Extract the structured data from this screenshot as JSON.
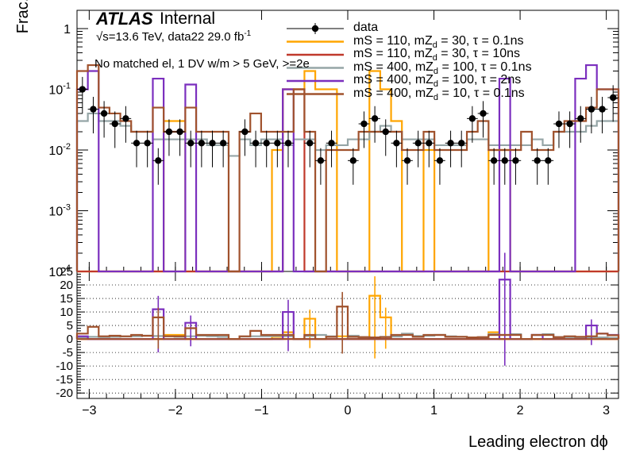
{
  "header": {
    "atlas": "ATLAS",
    "internal": "Internal",
    "energy_line": "√s=13.6 TeV, data22 29.0 fb",
    "lumi_sup": "-1",
    "selection": "No matched el, 1 DV w/m > 5 GeV, >=2e"
  },
  "axes": {
    "ylabel_top": "Frac. Events",
    "xlabel": "Leading electron dϕ"
  },
  "legend": [
    {
      "label": "data",
      "color": "#000000",
      "marker": "dot"
    },
    {
      "label": "mS = 110, mZ_d = 30, τ = 0.1ns",
      "color": "#ffa500",
      "marker": "line"
    },
    {
      "label": "mS = 110, mZ_d = 30, τ = 10ns",
      "color": "#c0392b",
      "marker": "line"
    },
    {
      "label": "mS = 400, mZ_d = 100, τ = 0.1ns",
      "color": "#95a5a6",
      "marker": "line"
    },
    {
      "label": "mS = 400, mZ_d = 100, τ = 2ns",
      "color": "#7b2fbe",
      "marker": "line"
    },
    {
      "label": "mS = 400, mZ_d = 10, τ = 0.1ns",
      "color": "#a0522d",
      "marker": "line"
    }
  ],
  "chart_data": [
    {
      "type": "line",
      "panel": "top",
      "scale": "log",
      "xlim": [
        -3.14159,
        3.14159
      ],
      "ylim": [
        0.0001,
        2
      ],
      "ylabel": "Frac. Events",
      "yticks": [
        "10^-4",
        "10^-3",
        "10^-2",
        "10^-1",
        "1"
      ],
      "bins": 50,
      "series": [
        {
          "name": "data",
          "color": "#000000",
          "style": "points",
          "values": [
            0.1,
            0.047,
            0.04,
            0.027,
            0.033,
            0.013,
            0.013,
            0.0067,
            0.02,
            0.02,
            0.013,
            0.013,
            0.013,
            0.013,
            0,
            0.02,
            0.013,
            0.013,
            0.013,
            0.013,
            0,
            0.013,
            0.0067,
            0.013,
            0,
            0.0067,
            0.027,
            0.033,
            0.02,
            0.013,
            0.0067,
            0.013,
            0.013,
            0.0067,
            0.013,
            0.013,
            0.033,
            0.04,
            0.0067,
            0.0067,
            0.0067,
            0,
            0.0067,
            0.0067,
            0.027,
            0.027,
            0.033,
            0.047,
            0.047,
            0.073
          ]
        },
        {
          "name": "mS = 110, mZ_d = 30, τ = 0.1ns",
          "color": "#ffa500",
          "style": "step",
          "values": [
            0,
            0,
            0,
            0,
            0,
            0,
            0,
            0,
            0.03,
            0.03,
            0,
            0,
            0,
            0,
            0,
            0,
            0,
            0,
            0.01,
            0.1,
            0.1,
            0.2,
            0.1,
            0.1,
            0,
            0,
            0,
            0.2,
            0.1,
            0.03,
            0,
            0,
            0.01,
            0,
            0,
            0,
            0,
            0,
            0.01,
            0.01,
            0,
            0,
            0,
            0,
            0,
            0,
            0,
            0,
            0,
            0
          ]
        },
        {
          "name": "mS = 110, mZ_d = 30, τ = 10ns",
          "color": "#c0392b",
          "style": "step",
          "values": [
            0,
            0,
            0,
            0,
            0,
            0,
            0,
            0,
            0,
            0,
            0,
            0,
            0,
            0,
            0,
            0,
            0,
            0,
            0,
            0.1,
            0.1,
            0,
            0,
            0,
            0,
            0,
            0,
            0,
            0,
            0,
            0,
            0,
            0,
            0,
            0,
            0,
            0,
            0,
            0,
            0,
            0,
            0,
            0,
            0,
            0,
            0,
            0,
            0,
            0,
            0
          ]
        },
        {
          "name": "mS = 400, mZ_d = 100, τ = 0.1ns",
          "color": "#95a5a6",
          "style": "step",
          "values": [
            0.03,
            0.04,
            0.03,
            0.03,
            0.025,
            0.02,
            0.02,
            0.015,
            0.015,
            0.015,
            0.015,
            0.015,
            0.012,
            0.012,
            0.008,
            0.015,
            0.012,
            0.015,
            0.015,
            0.012,
            0.015,
            0.015,
            0.01,
            0.012,
            0.012,
            0.015,
            0.015,
            0.02,
            0.025,
            0.02,
            0.015,
            0.015,
            0.015,
            0.012,
            0.012,
            0.012,
            0.015,
            0.015,
            0.012,
            0.012,
            0.012,
            0.012,
            0.015,
            0.012,
            0.02,
            0.02,
            0.02,
            0.025,
            0.03,
            0.03
          ]
        },
        {
          "name": "mS = 400, mZ_d = 100, τ = 2ns",
          "color": "#7b2fbe",
          "style": "step",
          "values": [
            0.1,
            0.2,
            0,
            0,
            0,
            0,
            0,
            0.15,
            0,
            0,
            0.12,
            0,
            0,
            0,
            0,
            0,
            0,
            0,
            0,
            0.1,
            0,
            0,
            0,
            0,
            0,
            0,
            0,
            0,
            0,
            0,
            0,
            0,
            0,
            0,
            0,
            0,
            0,
            0,
            0,
            0.15,
            0,
            0,
            0,
            0,
            0,
            0,
            0.15,
            0.25,
            0.1,
            0.1
          ]
        },
        {
          "name": "mS = 400, mZ_d = 10, τ = 0.1ns",
          "color": "#a0522d",
          "style": "step",
          "values": [
            0.2,
            0.25,
            0.05,
            0.04,
            0.03,
            0.02,
            0.02,
            0.05,
            0.02,
            0.02,
            0.05,
            0.02,
            0.02,
            0.02,
            0,
            0.02,
            0.04,
            0.02,
            0.02,
            0.02,
            0.1,
            0.02,
            0,
            0.01,
            0.01,
            0.01,
            0.02,
            0.02,
            0.02,
            0.02,
            0.01,
            0.01,
            0.02,
            0.01,
            0.01,
            0.01,
            0.02,
            0.03,
            0.01,
            0.01,
            0.01,
            0.02,
            0.01,
            0.01,
            0.02,
            0.03,
            0.03,
            0.05,
            0.1,
            0.1
          ]
        }
      ]
    },
    {
      "type": "line",
      "panel": "bottom",
      "xlim": [
        -3.14159,
        3.14159
      ],
      "ylim": [
        -22,
        25
      ],
      "yticks": [
        -20,
        -15,
        -10,
        -5,
        0,
        5,
        10,
        15,
        20,
        25
      ],
      "xticks": [
        -3,
        -2,
        -1,
        0,
        1,
        2,
        3
      ],
      "xlabel": "Leading electron dϕ",
      "bins": 50,
      "series": [
        {
          "name": "mS = 110, mZ_d = 30, τ = 0.1ns",
          "color": "#ffa500",
          "values": [
            0,
            0,
            0,
            0,
            0,
            0,
            0,
            0,
            1.5,
            1.5,
            0,
            0,
            0,
            0,
            0,
            0,
            0,
            0,
            0.8,
            2.5,
            0,
            7.5,
            0,
            0,
            1.0,
            0,
            0,
            16,
            8,
            0,
            0,
            0,
            0,
            0,
            0,
            0,
            0,
            0,
            2.5,
            0,
            0,
            0,
            0,
            0,
            0,
            0,
            0,
            0,
            0,
            0
          ]
        },
        {
          "name": "mS = 110, mZ_d = 30, τ = 10ns",
          "color": "#c0392b",
          "values": [
            0,
            0,
            0,
            0,
            0,
            0,
            0,
            0,
            0,
            0,
            0,
            0,
            0,
            0,
            0,
            0,
            0,
            0,
            0,
            0,
            0,
            0,
            0,
            0,
            0,
            0,
            0,
            0,
            0,
            0,
            0,
            0,
            0,
            0,
            0,
            0,
            0,
            0,
            0,
            0,
            0,
            0,
            0,
            0,
            0,
            0,
            0,
            0,
            0,
            0
          ]
        },
        {
          "name": "mS = 400, mZ_d = 100, τ = 0.1ns",
          "color": "#95a5a6",
          "values": [
            0.5,
            0.8,
            0.7,
            0.8,
            0.9,
            1.0,
            1.2,
            1.1,
            1.0,
            0.8,
            1.0,
            1.2,
            1.0,
            0.8,
            0,
            0.9,
            1.0,
            1.0,
            1.1,
            1.0,
            0,
            1.1,
            1.5,
            1.0,
            0,
            1.2,
            0.7,
            0.6,
            0.8,
            0.9,
            2.0,
            1.1,
            1.2,
            1.5,
            1.0,
            0.8,
            0.6,
            0.5,
            1.8,
            1.5,
            1.8,
            0,
            1.5,
            1.8,
            0.7,
            0.7,
            0.6,
            0.5,
            0.6,
            0.4
          ]
        },
        {
          "name": "mS = 400, mZ_d = 100, τ = 2ns",
          "color": "#7b2fbe",
          "values": [
            1.0,
            0,
            0,
            0,
            0,
            0,
            0,
            11,
            0,
            0,
            6,
            0,
            0,
            0,
            0,
            0,
            0,
            0,
            0,
            10,
            0,
            0,
            0,
            0,
            0,
            0,
            0,
            0,
            0,
            0,
            0,
            0,
            0,
            0,
            0,
            0,
            0,
            0,
            0,
            22,
            0,
            0,
            1.5,
            0,
            0,
            0,
            0,
            5,
            2,
            1.5
          ]
        },
        {
          "name": "mS = 400, mZ_d = 10, τ = 0.1ns",
          "color": "#a0522d",
          "values": [
            2.0,
            4.5,
            1.0,
            1.2,
            1.0,
            1.5,
            1.2,
            8,
            1.0,
            1.0,
            4,
            1.5,
            1.5,
            1.5,
            0,
            1.0,
            3,
            1.5,
            1.5,
            1.5,
            0,
            1.5,
            0,
            0.8,
            12,
            0.8,
            0.7,
            0.6,
            0.7,
            1.5,
            1.5,
            0.8,
            1.5,
            1.5,
            0.8,
            0.8,
            0.6,
            0.7,
            1.5,
            1.5,
            1.5,
            0,
            1.5,
            1.5,
            0.7,
            1.0,
            0.8,
            1.0,
            2.0,
            1.4
          ]
        }
      ]
    }
  ]
}
